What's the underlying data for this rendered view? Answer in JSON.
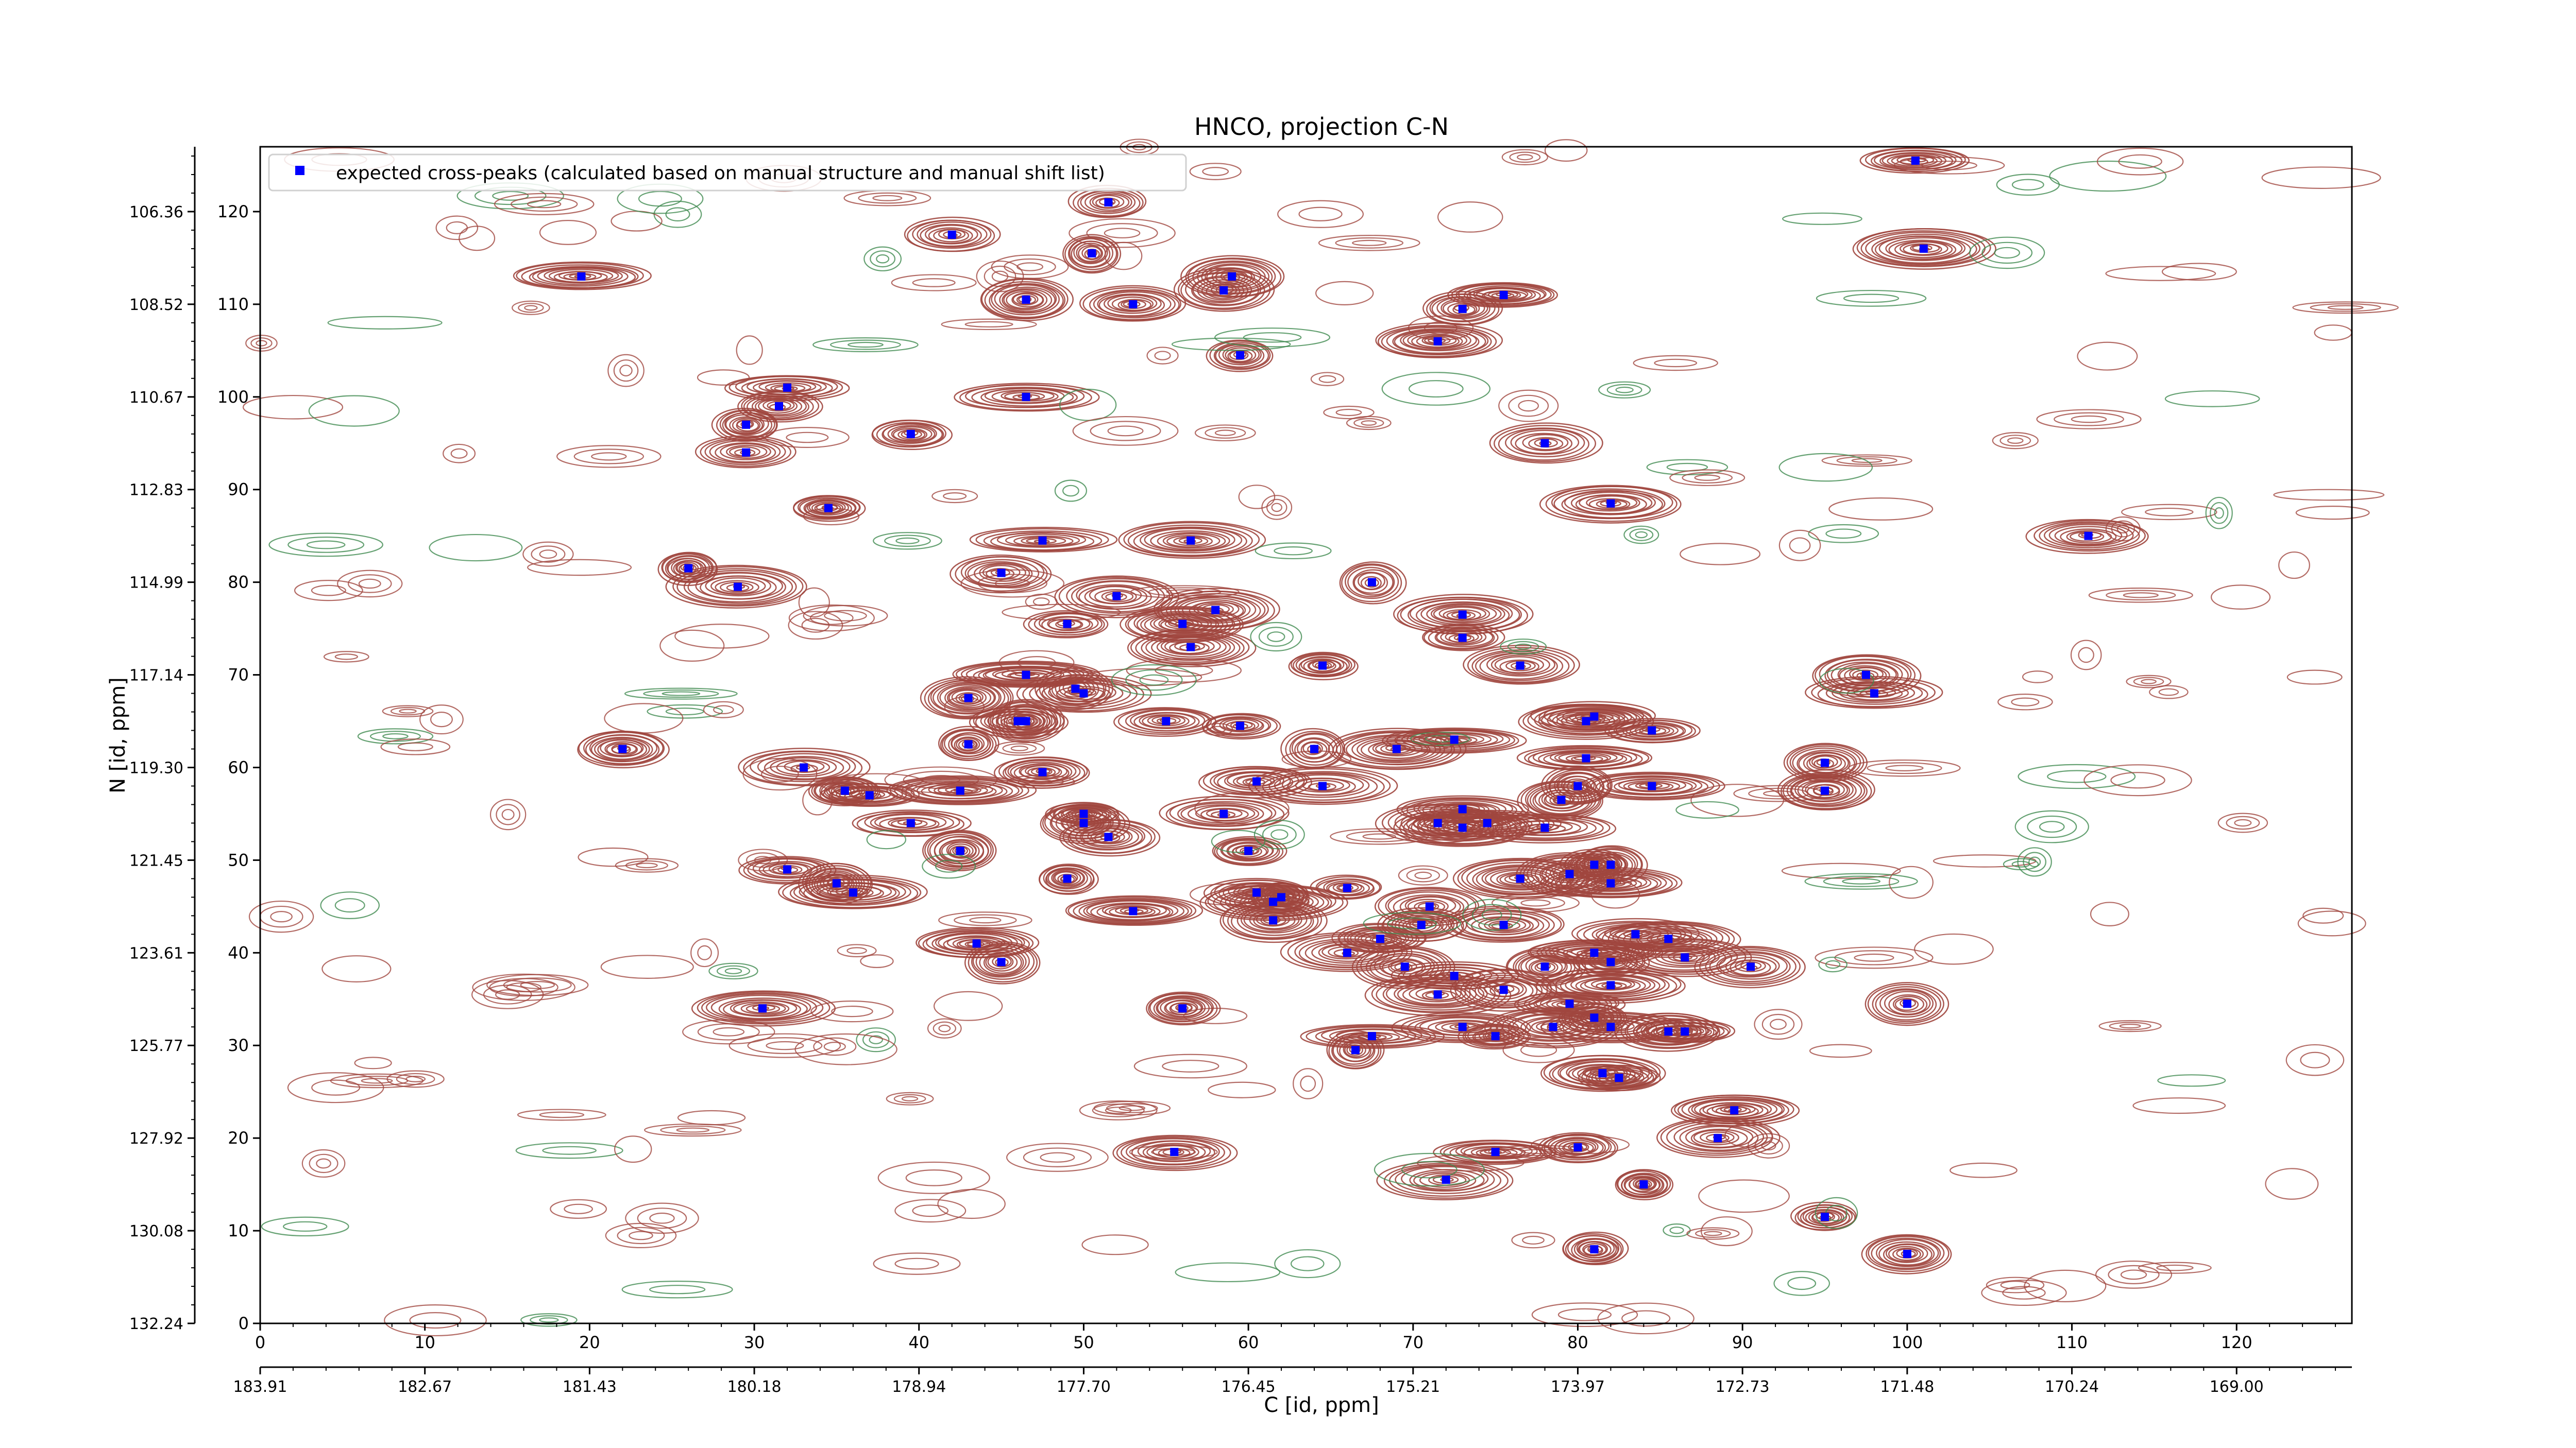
{
  "chart_data": {
    "type": "scatter",
    "title": "HNCO, projection C-N",
    "xlabel": "C [id, ppm]",
    "ylabel": "N [id, ppm]",
    "xlim": [
      0,
      127
    ],
    "ylim": [
      0,
      127
    ],
    "x_ticks": [
      0,
      10,
      20,
      30,
      40,
      50,
      60,
      70,
      80,
      90,
      100,
      110,
      120
    ],
    "y_ticks": [
      0,
      10,
      20,
      30,
      40,
      50,
      60,
      70,
      80,
      90,
      100,
      110,
      120
    ],
    "c_ppm_tick_labels": [
      "183.91",
      "182.67",
      "181.43",
      "180.18",
      "178.94",
      "177.70",
      "176.45",
      "175.21",
      "173.97",
      "172.73",
      "171.48",
      "170.24",
      "169.00"
    ],
    "n_ppm_tick_labels": [
      "132.24",
      "130.08",
      "127.92",
      "125.77",
      "123.61",
      "121.45",
      "119.30",
      "117.14",
      "114.99",
      "112.83",
      "110.67",
      "108.52",
      "106.36"
    ],
    "legend": {
      "placement": "top-left",
      "entries": [
        "expected cross-peaks (calculated based on manual structure and manual shift list)"
      ]
    },
    "colors": {
      "positive_contours": "#a0463e",
      "negative_contours": "#3f8a4f",
      "peak_marker": "#0000ff"
    },
    "series": [
      {
        "name": "expected cross-peaks (calculated based on manual structure and manual shift list)",
        "points": [
          [
            100.5,
            125.5
          ],
          [
            42,
            117.5
          ],
          [
            51.5,
            121
          ],
          [
            101,
            116
          ],
          [
            19.5,
            113
          ],
          [
            50.5,
            115.5
          ],
          [
            59,
            113
          ],
          [
            58.5,
            111.5
          ],
          [
            75.5,
            111
          ],
          [
            46.5,
            110.5
          ],
          [
            53,
            110
          ],
          [
            73,
            109.5
          ],
          [
            71.5,
            106
          ],
          [
            59.5,
            104.5
          ],
          [
            32,
            101
          ],
          [
            31.5,
            99
          ],
          [
            46.5,
            100
          ],
          [
            29.5,
            97
          ],
          [
            39.5,
            96
          ],
          [
            29.5,
            94
          ],
          [
            78,
            95
          ],
          [
            82,
            88.5
          ],
          [
            34.5,
            88
          ],
          [
            47.5,
            84.5
          ],
          [
            56.5,
            84.5
          ],
          [
            111,
            85
          ],
          [
            26,
            81.5
          ],
          [
            45,
            81
          ],
          [
            29,
            79.5
          ],
          [
            67.5,
            80
          ],
          [
            73,
            76.5
          ],
          [
            52,
            78.5
          ],
          [
            58,
            77
          ],
          [
            49,
            75.5
          ],
          [
            56,
            75.5
          ],
          [
            73,
            74
          ],
          [
            56.5,
            73
          ],
          [
            64.5,
            71
          ],
          [
            76.5,
            71
          ],
          [
            97.5,
            70
          ],
          [
            98,
            68
          ],
          [
            46.5,
            70
          ],
          [
            49.5,
            68.5
          ],
          [
            50,
            68
          ],
          [
            43,
            67.5
          ],
          [
            46,
            65
          ],
          [
            46.5,
            65
          ],
          [
            55,
            65
          ],
          [
            59.5,
            64.5
          ],
          [
            80.5,
            65
          ],
          [
            81,
            65.5
          ],
          [
            84.5,
            64
          ],
          [
            22,
            62
          ],
          [
            43,
            62.5
          ],
          [
            64,
            62
          ],
          [
            69,
            62
          ],
          [
            72.5,
            63
          ],
          [
            80.5,
            61
          ],
          [
            95,
            60.5
          ],
          [
            33,
            60
          ],
          [
            47.5,
            59.5
          ],
          [
            35.5,
            57.5
          ],
          [
            37,
            57
          ],
          [
            42.5,
            57.5
          ],
          [
            60.5,
            58.5
          ],
          [
            64.5,
            58
          ],
          [
            80,
            58
          ],
          [
            84.5,
            58
          ],
          [
            95,
            57.5
          ],
          [
            39.5,
            54
          ],
          [
            50,
            54
          ],
          [
            50,
            55
          ],
          [
            58.5,
            55
          ],
          [
            73,
            55.5
          ],
          [
            71.5,
            54
          ],
          [
            73,
            53.5
          ],
          [
            74.5,
            54
          ],
          [
            78,
            53.5
          ],
          [
            51.5,
            52.5
          ],
          [
            60,
            51
          ],
          [
            42.5,
            51
          ],
          [
            79,
            56.5
          ],
          [
            32,
            49
          ],
          [
            35,
            47.5
          ],
          [
            36,
            46.5
          ],
          [
            49,
            48
          ],
          [
            60.5,
            46.5
          ],
          [
            66,
            47
          ],
          [
            76.5,
            48
          ],
          [
            79.5,
            48.5
          ],
          [
            81,
            49.5
          ],
          [
            82,
            49.5
          ],
          [
            82,
            47.5
          ],
          [
            53,
            44.5
          ],
          [
            61.5,
            45.5
          ],
          [
            62,
            46
          ],
          [
            61.5,
            43.5
          ],
          [
            71,
            45
          ],
          [
            70.5,
            43
          ],
          [
            75.5,
            43
          ],
          [
            68,
            41.5
          ],
          [
            66,
            40
          ],
          [
            43.5,
            41
          ],
          [
            45,
            39
          ],
          [
            81,
            40
          ],
          [
            83.5,
            42
          ],
          [
            85.5,
            41.5
          ],
          [
            86.5,
            39.5
          ],
          [
            82,
            39
          ],
          [
            69.5,
            38.5
          ],
          [
            72.5,
            37.5
          ],
          [
            78,
            38.5
          ],
          [
            90.5,
            38.5
          ],
          [
            82,
            36.5
          ],
          [
            71.5,
            35.5
          ],
          [
            75.5,
            36
          ],
          [
            30.5,
            34
          ],
          [
            56,
            34
          ],
          [
            79.5,
            34.5
          ],
          [
            81,
            33
          ],
          [
            100,
            34.5
          ],
          [
            73,
            32
          ],
          [
            75,
            31
          ],
          [
            67.5,
            31
          ],
          [
            66.5,
            29.5
          ],
          [
            78.5,
            32
          ],
          [
            82,
            32
          ],
          [
            85.5,
            31.5
          ],
          [
            86.5,
            31.5
          ],
          [
            81.5,
            27
          ],
          [
            82.5,
            26.5
          ],
          [
            89.5,
            23
          ],
          [
            88.5,
            20
          ],
          [
            55.5,
            18.5
          ],
          [
            75,
            18.5
          ],
          [
            80,
            19
          ],
          [
            72,
            15.5
          ],
          [
            84,
            15
          ],
          [
            95,
            11.5
          ],
          [
            81,
            8
          ],
          [
            100,
            7.5
          ]
        ]
      }
    ]
  }
}
